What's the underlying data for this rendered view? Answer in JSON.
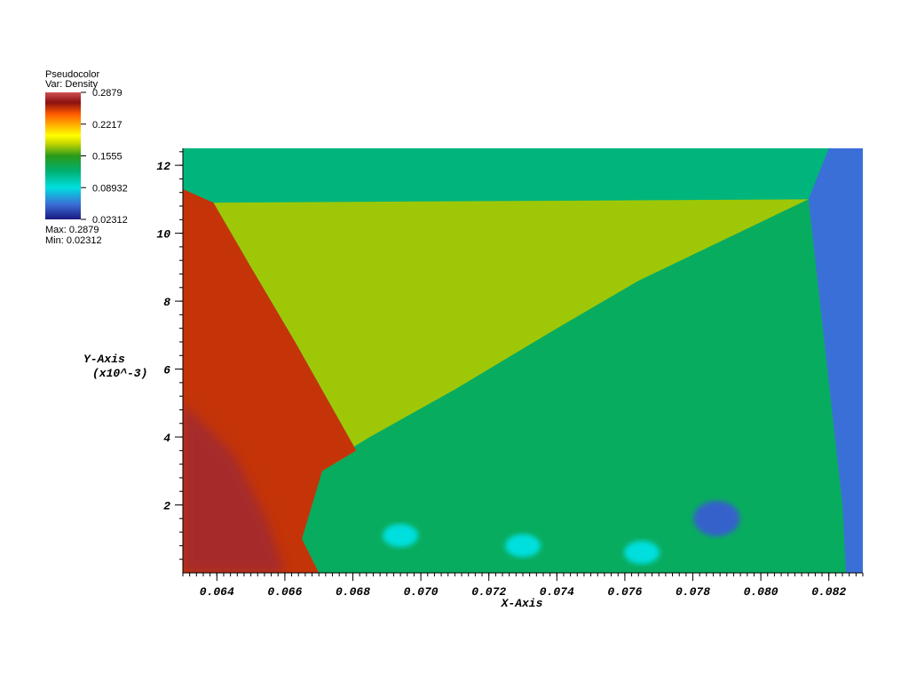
{
  "legend": {
    "title_line1": "Pseudocolor",
    "title_line2": "Var: Density",
    "tick_labels": [
      "0.2879",
      "0.2217",
      "0.1555",
      "0.08932",
      "0.02312"
    ],
    "max_text": "Max: 0.2879",
    "min_text": "Min: 0.02312"
  },
  "colormap": [
    {
      "stop": 0.0,
      "color": "#1a1a80"
    },
    {
      "stop": 0.12,
      "color": "#3b6fd8"
    },
    {
      "stop": 0.25,
      "color": "#00e0e0"
    },
    {
      "stop": 0.38,
      "color": "#00b070"
    },
    {
      "stop": 0.5,
      "color": "#2a9a1a"
    },
    {
      "stop": 0.6,
      "color": "#c8d800"
    },
    {
      "stop": 0.66,
      "color": "#ffff00"
    },
    {
      "stop": 0.75,
      "color": "#ffaa00"
    },
    {
      "stop": 0.83,
      "color": "#ff5a00"
    },
    {
      "stop": 0.92,
      "color": "#8b1010"
    },
    {
      "stop": 1.0,
      "color": "#d05050"
    }
  ],
  "chart_data": {
    "type": "heatmap",
    "title": "",
    "xlabel": "X-Axis",
    "ylabel_line1": "Y-Axis",
    "ylabel_line2": "(x10^-3)",
    "xlim": [
      0.063,
      0.083
    ],
    "ylim": [
      0,
      12.5
    ],
    "x_ticks": [
      0.064,
      0.066,
      0.068,
      0.07,
      0.072,
      0.074,
      0.076,
      0.078,
      0.08,
      0.082
    ],
    "x_tick_labels": [
      "0.064",
      "0.066",
      "0.068",
      "0.070",
      "0.072",
      "0.074",
      "0.076",
      "0.078",
      "0.080",
      "0.082"
    ],
    "y_ticks": [
      2,
      4,
      6,
      8,
      10,
      12
    ],
    "y_tick_labels": [
      "2",
      "4",
      "6",
      "8",
      "10",
      "12"
    ],
    "variable": "Density",
    "value_range": [
      0.02312,
      0.2879
    ],
    "regions": [
      {
        "name": "upper band",
        "density": 0.12,
        "polygon": [
          [
            0.063,
            12.5
          ],
          [
            0.082,
            12.5
          ],
          [
            0.0814,
            11.0
          ],
          [
            0.0639,
            10.9
          ],
          [
            0.063,
            11.3
          ]
        ]
      },
      {
        "name": "right ambient",
        "density": 0.055,
        "polygon": [
          [
            0.082,
            12.5
          ],
          [
            0.083,
            12.5
          ],
          [
            0.083,
            0
          ],
          [
            0.0825,
            0
          ],
          [
            0.0824,
            2
          ],
          [
            0.0814,
            11.0
          ]
        ]
      },
      {
        "name": "shocked yellow",
        "density": 0.175,
        "polygon": [
          [
            0.0639,
            10.9
          ],
          [
            0.0814,
            11.0
          ],
          [
            0.0764,
            8.6
          ],
          [
            0.074,
            7.2
          ],
          [
            0.071,
            5.4
          ],
          [
            0.0685,
            4.0
          ],
          [
            0.0675,
            3.4
          ],
          [
            0.0671,
            3.0
          ],
          [
            0.0681,
            3.6
          ],
          [
            0.0663,
            6.8
          ],
          [
            0.065,
            9.0
          ]
        ]
      },
      {
        "name": "mixing green",
        "density": 0.13,
        "polygon": [
          [
            0.0814,
            11.0
          ],
          [
            0.0824,
            2
          ],
          [
            0.0825,
            0
          ],
          [
            0.067,
            0
          ],
          [
            0.0665,
            1.0
          ],
          [
            0.0671,
            2.6
          ],
          [
            0.0685,
            3.8
          ],
          [
            0.071,
            5.3
          ],
          [
            0.074,
            7.1
          ],
          [
            0.0764,
            8.5
          ]
        ]
      },
      {
        "name": "high density red",
        "density": 0.255,
        "polygon": [
          [
            0.063,
            11.3
          ],
          [
            0.0639,
            10.9
          ],
          [
            0.065,
            9.0
          ],
          [
            0.0663,
            6.8
          ],
          [
            0.0681,
            3.6
          ],
          [
            0.0671,
            3.0
          ],
          [
            0.0665,
            1.0
          ],
          [
            0.067,
            0
          ],
          [
            0.063,
            0
          ]
        ]
      },
      {
        "name": "dark red core",
        "density": 0.275,
        "polygon": [
          [
            0.063,
            5.0
          ],
          [
            0.0645,
            3.5
          ],
          [
            0.0655,
            1.5
          ],
          [
            0.066,
            0
          ],
          [
            0.063,
            0
          ]
        ]
      }
    ],
    "features": [
      {
        "name": "vortex core",
        "x": 0.0787,
        "y": 1.6,
        "density": 0.05
      },
      {
        "name": "cyan blob",
        "x": 0.073,
        "y": 0.8,
        "density": 0.09
      },
      {
        "name": "cyan blob",
        "x": 0.0694,
        "y": 1.1,
        "density": 0.09
      },
      {
        "name": "cyan blob",
        "x": 0.0765,
        "y": 0.6,
        "density": 0.09
      }
    ]
  }
}
